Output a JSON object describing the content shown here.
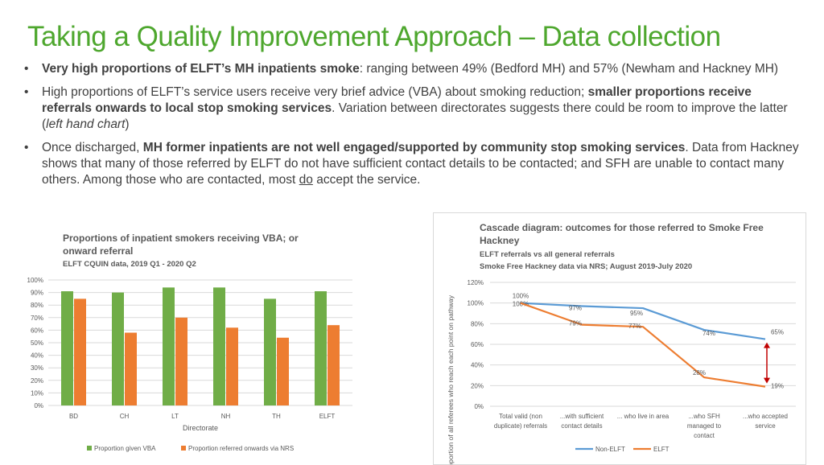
{
  "slide": {
    "title": "Taking a Quality Improvement Approach – Data collection",
    "bullets": [
      {
        "runs": [
          {
            "text": "Very high proportions of ELFT’s MH inpatients smoke",
            "style": "b"
          },
          {
            "text": ": ranging between 49% (Bedford MH) and 57% (Newham and Hackney MH)",
            "style": ""
          }
        ]
      },
      {
        "runs": [
          {
            "text": "High proportions of ELFT’s service users receive very brief advice (VBA) about smoking reduction; ",
            "style": ""
          },
          {
            "text": "smaller proportions receive referrals onwards to local stop smoking services",
            "style": "b"
          },
          {
            "text": ". Variation between directorates suggests there could be room to improve the latter (",
            "style": ""
          },
          {
            "text": "left hand chart",
            "style": "i"
          },
          {
            "text": ")",
            "style": ""
          }
        ]
      },
      {
        "runs": [
          {
            "text": "Once discharged, ",
            "style": ""
          },
          {
            "text": "MH former inpatients are not well engaged/supported by community stop smoking services",
            "style": "b"
          },
          {
            "text": ". Data from Hackney shows that many of those referred by ELFT do not have sufficient contact details to be contacted; and SFH are unable to contact many others. Among those who are contacted, most ",
            "style": ""
          },
          {
            "text": "do",
            "style": "u"
          },
          {
            "text": " accept the service.",
            "style": ""
          }
        ]
      }
    ]
  },
  "chart_data": [
    {
      "type": "bar",
      "title": "Proportions of inpatient smokers receiving VBA; or onward referral",
      "subtitle": "ELFT CQUIN data, 2019 Q1 - 2020 Q2",
      "xlabel": "Directorate",
      "ylabel": "",
      "categories": [
        "BD",
        "CH",
        "LT",
        "NH",
        "TH",
        "ELFT"
      ],
      "y_ticks": [
        "0%",
        "10%",
        "20%",
        "30%",
        "40%",
        "50%",
        "60%",
        "70%",
        "80%",
        "90%",
        "100%"
      ],
      "ylim": [
        0,
        100
      ],
      "grid": true,
      "legend": "bottom",
      "series": [
        {
          "name": "Proportion given VBA",
          "color": "#70ad47",
          "values": [
            91,
            90,
            94,
            94,
            85,
            91
          ]
        },
        {
          "name": "Proportion referred onwards via NRS",
          "color": "#ed7d31",
          "values": [
            85,
            58,
            70,
            62,
            54,
            64
          ]
        }
      ]
    },
    {
      "type": "line",
      "title": "Cascade diagram: outcomes for those referred to Smoke Free Hackney",
      "subtitle1": "ELFT referrals vs all general referrals",
      "subtitle2": "Smoke Free Hackney data via NRS; August 2019-July 2020",
      "ylabel": "Proportion of all referees who reach each point on pathway",
      "categories": [
        [
          "Total valid (non",
          "duplicate) referrals"
        ],
        [
          "...with sufficient",
          "contact details"
        ],
        [
          "... who live in area"
        ],
        [
          "...who SFH",
          "managed to",
          "contact"
        ],
        [
          "...who accepted",
          "service"
        ]
      ],
      "y_ticks": [
        "0%",
        "20%",
        "40%",
        "60%",
        "80%",
        "100%",
        "120%"
      ],
      "ylim": [
        0,
        120
      ],
      "grid": true,
      "legend": "bottom",
      "series": [
        {
          "name": "Non-ELFT",
          "color": "#5b9bd5",
          "values": [
            100,
            97,
            95,
            74,
            65
          ],
          "labels": [
            "100%",
            "97%",
            "95%",
            "74%",
            "65%"
          ]
        },
        {
          "name": "ELFT",
          "color": "#ed7d31",
          "values": [
            100,
            79,
            77,
            28,
            19
          ],
          "labels": [
            "100%",
            "79%",
            "77%",
            "28%",
            "19%"
          ]
        }
      ],
      "annotation": {
        "type": "double-arrow",
        "color": "#c00000",
        "between_category": 4
      }
    }
  ]
}
